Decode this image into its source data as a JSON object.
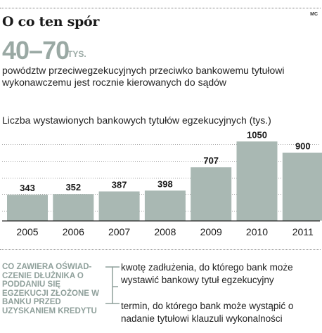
{
  "header": {
    "title": "O co ten spór",
    "credit": "MC"
  },
  "highlight": {
    "value": "40–70",
    "unit": "TYS.",
    "description": "powództw przeciwegzekucyjnych przeciwko bankowemu tytułowi wykonawczemu jest rocznie kierowanych do sądów"
  },
  "chart_data": {
    "type": "bar",
    "title": "Liczba wystawionych bankowych tytułów egzekucyjnych (tys.)",
    "categories": [
      "2005",
      "2006",
      "2007",
      "2008",
      "2009",
      "2010",
      "2011"
    ],
    "values": [
      343,
      352,
      387,
      398,
      707,
      1050,
      900
    ],
    "ylim": [
      0,
      1100
    ],
    "grid": true,
    "bar_color": "#a9b8b3"
  },
  "info": {
    "label": "CO ZAWIERA OŚWIAD-CZENIE DŁUŻNIKA O PODDANIU SIĘ EGZEKUCJI ZŁOŻONE W BANKU PRZED UZYSKANIEM KREDYTU",
    "items": [
      "kwotę zadłużenia, do którego bank może wystawić bankowy tytuł egzekucyjny",
      "termin, do którego bank może wystąpić o nadanie tytułowi klauzuli wykonalności"
    ],
    "accent_color": "#8fa09b"
  }
}
